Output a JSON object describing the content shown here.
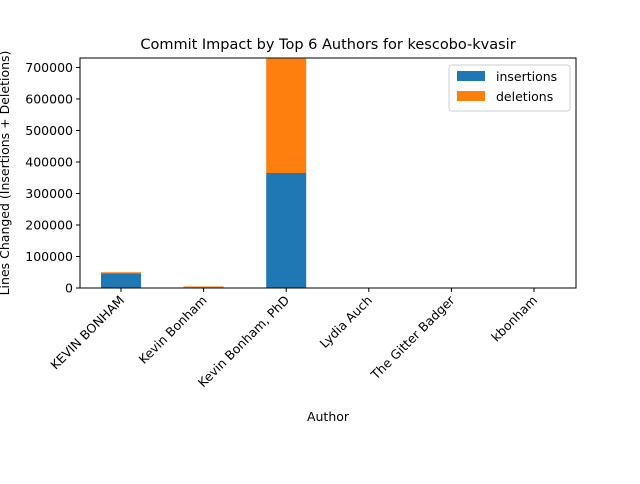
{
  "chart_data": {
    "type": "bar",
    "stacked": true,
    "title": "Commit Impact by Top 6 Authors for kescobo-kvasir",
    "xlabel": "Author",
    "ylabel": "Lines Changed (Insertions + Deletions)",
    "categories": [
      "KEVIN BONHAM",
      "Kevin Bonham",
      "Kevin Bonham, PhD",
      "Lydia Auch",
      "The Gitter Badger",
      "kbonham"
    ],
    "series": [
      {
        "name": "insertions",
        "color": "#1f77b4",
        "values": [
          46000,
          2000,
          365000,
          300,
          50,
          100
        ]
      },
      {
        "name": "deletions",
        "color": "#ff7f0e",
        "values": [
          4000,
          3000,
          363000,
          200,
          10,
          50
        ]
      }
    ],
    "ylim": [
      0,
      730000
    ],
    "yticks": [
      0,
      100000,
      200000,
      300000,
      400000,
      500000,
      600000,
      700000
    ],
    "grid": false,
    "legend_position": "top-right"
  }
}
